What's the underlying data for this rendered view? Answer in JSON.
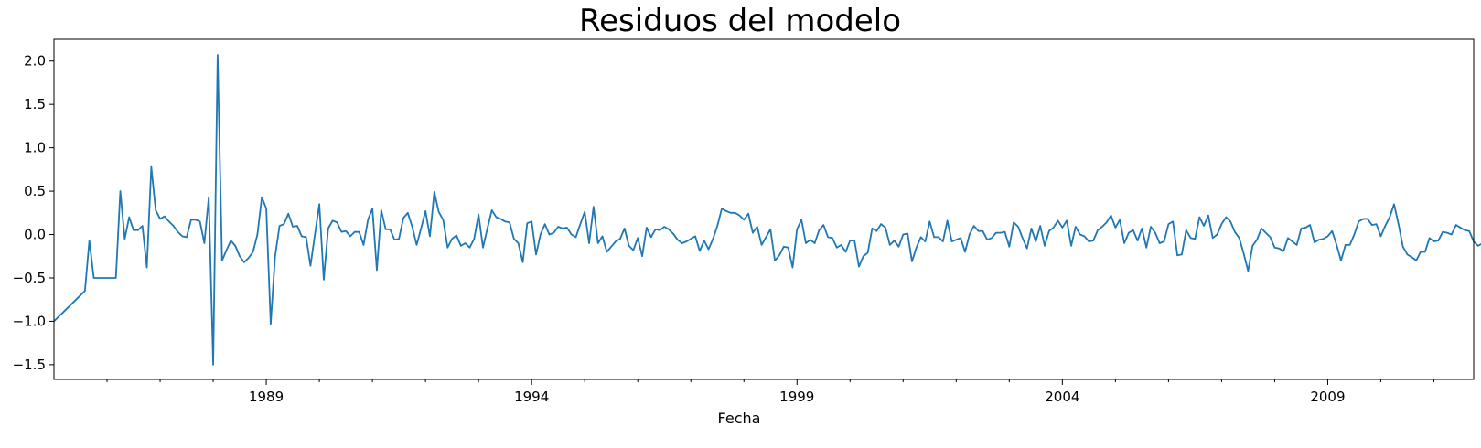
{
  "chart_data": {
    "type": "line",
    "title": "Residuos del modelo",
    "xlabel": "Fecha",
    "ylabel": "",
    "x_start": "1985-01",
    "x_end": "2011-09",
    "xlim": [
      1985.0,
      2011.75
    ],
    "ylim": [
      -1.67,
      2.25
    ],
    "y_ticks": [
      -1.5,
      -1.0,
      -0.5,
      0.0,
      0.5,
      1.0,
      1.5,
      2.0
    ],
    "y_tick_labels": [
      "−1.5",
      "−1.0",
      "−0.5",
      "0.0",
      "0.5",
      "1.0",
      "1.5",
      "2.0"
    ],
    "x_major_ticks": [
      1989,
      1994,
      1999,
      2004,
      2009
    ],
    "x_major_tick_labels": [
      "1989",
      "1994",
      "1999",
      "2004",
      "2009"
    ],
    "x_minor_ticks": [
      1986,
      1987,
      1988,
      1990,
      1991,
      1992,
      1993,
      1995,
      1996,
      1997,
      1998,
      2000,
      2001,
      2002,
      2003,
      2005,
      2006,
      2007,
      2008,
      2010,
      2011
    ],
    "grid": false,
    "legend": "none",
    "line_color": "#1f77b4",
    "series": [
      {
        "frequency": "monthly",
        "values": [
          -1.0,
          -0.95,
          -0.9,
          -0.85,
          -0.8,
          -0.75,
          -0.7,
          -0.65,
          -0.07,
          -0.5,
          -0.5,
          -0.5,
          -0.5,
          -0.5,
          -0.5,
          0.5,
          -0.05,
          0.2,
          0.05,
          0.05,
          0.1,
          -0.38,
          0.78,
          0.28,
          0.18,
          0.21,
          0.15,
          0.1,
          0.03,
          -0.02,
          -0.03,
          0.17,
          0.17,
          0.15,
          -0.1,
          0.43,
          -1.5,
          2.07,
          -0.3,
          -0.18,
          -0.07,
          -0.13,
          -0.25,
          -0.32,
          -0.27,
          -0.2,
          0.0,
          0.43,
          0.3,
          -1.03,
          -0.25,
          0.1,
          0.12,
          0.24,
          0.09,
          0.1,
          -0.02,
          -0.03,
          -0.36,
          0.0,
          0.35,
          -0.52,
          0.07,
          0.16,
          0.14,
          0.03,
          0.04,
          -0.02,
          0.03,
          0.03,
          -0.12,
          0.17,
          0.3,
          -0.41,
          0.28,
          0.06,
          0.06,
          -0.06,
          -0.05,
          0.19,
          0.25,
          0.09,
          -0.12,
          0.07,
          0.27,
          -0.02,
          0.49,
          0.26,
          0.17,
          -0.15,
          -0.05,
          -0.01,
          -0.13,
          -0.1,
          -0.15,
          -0.05,
          0.23,
          -0.15,
          0.07,
          0.28,
          0.2,
          0.18,
          0.15,
          0.14,
          -0.05,
          -0.1,
          -0.32,
          0.13,
          0.15,
          -0.23,
          0.0,
          0.12,
          0.0,
          0.02,
          0.09,
          0.07,
          0.08,
          0.0,
          -0.03,
          0.12,
          0.26,
          -0.1,
          0.32,
          -0.1,
          -0.02,
          -0.2,
          -0.14,
          -0.08,
          -0.05,
          0.07,
          -0.13,
          -0.18,
          -0.04,
          -0.25,
          0.08,
          -0.03,
          0.06,
          0.05,
          0.09,
          0.06,
          0.01,
          -0.06,
          -0.1,
          -0.08,
          -0.05,
          -0.02,
          -0.19,
          -0.07,
          -0.17,
          -0.05,
          0.1,
          0.3,
          0.27,
          0.25,
          0.25,
          0.22,
          0.17,
          0.24,
          0.02,
          0.09,
          -0.12,
          -0.03,
          0.06,
          -0.3,
          -0.24,
          -0.14,
          -0.15,
          -0.38,
          0.06,
          0.17,
          -0.1,
          -0.06,
          -0.1,
          0.05,
          0.11,
          -0.03,
          -0.04,
          -0.15,
          -0.12,
          -0.2,
          -0.07,
          -0.07,
          -0.37,
          -0.25,
          -0.21,
          0.07,
          0.04,
          0.12,
          0.08,
          -0.12,
          -0.07,
          -0.14,
          0.0,
          0.01,
          -0.31,
          -0.15,
          -0.03,
          -0.08,
          0.15,
          -0.03,
          -0.03,
          -0.08,
          0.16,
          -0.08,
          -0.06,
          -0.04,
          -0.2,
          0.0,
          0.1,
          0.04,
          0.04,
          -0.06,
          -0.04,
          0.02,
          0.02,
          0.03,
          -0.14,
          0.14,
          0.09,
          -0.04,
          -0.16,
          0.07,
          -0.08,
          0.1,
          -0.13,
          0.04,
          0.08,
          0.16,
          0.08,
          0.16,
          -0.13,
          0.09,
          0.0,
          -0.02,
          -0.08,
          -0.07,
          0.05,
          0.09,
          0.14,
          0.22,
          0.08,
          0.17,
          -0.1,
          0.02,
          0.05,
          -0.07,
          0.07,
          -0.15,
          0.09,
          0.02,
          -0.1,
          -0.08,
          0.12,
          0.15,
          -0.24,
          -0.23,
          0.05,
          -0.04,
          -0.05,
          0.2,
          0.1,
          0.22,
          -0.04,
          0.0,
          0.12,
          0.2,
          0.15,
          0.03,
          -0.04,
          -0.22,
          -0.42,
          -0.13,
          -0.06,
          0.07,
          0.02,
          -0.03,
          -0.15,
          -0.16,
          -0.19,
          -0.04,
          -0.08,
          -0.12,
          0.07,
          0.08,
          0.11,
          -0.09,
          -0.06,
          -0.05,
          -0.02,
          0.04,
          -0.12,
          -0.3,
          -0.12,
          -0.12,
          0.0,
          0.15,
          0.18,
          0.18,
          0.11,
          0.12,
          -0.02,
          0.1,
          0.2,
          0.35,
          0.12,
          -0.14,
          -0.23,
          -0.26,
          -0.3,
          -0.2,
          -0.2,
          -0.04,
          -0.08,
          -0.07,
          0.03,
          0.02,
          0.0,
          0.11,
          0.08,
          0.05,
          0.04,
          -0.08,
          -0.13,
          -0.1
        ]
      }
    ]
  }
}
